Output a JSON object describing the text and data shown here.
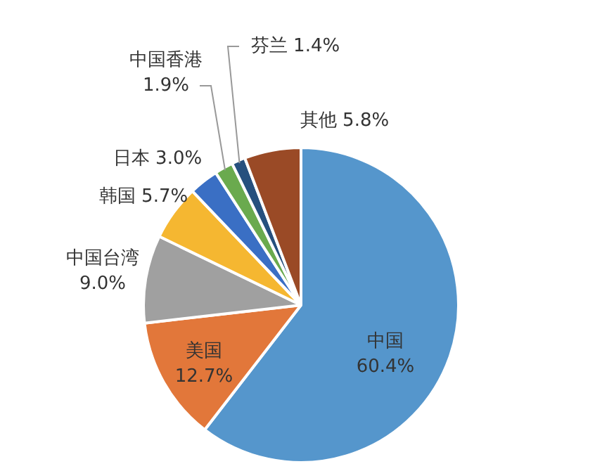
{
  "chart_data": {
    "type": "pie",
    "categories": [
      "中国",
      "美国",
      "中国台湾",
      "韩国",
      "日本",
      "中国香港",
      "芬兰",
      "其他"
    ],
    "values": [
      60.4,
      12.7,
      9.0,
      5.7,
      3.0,
      1.9,
      1.4,
      5.8
    ],
    "value_labels": [
      "60.4%",
      "12.7%",
      "9.0%",
      "5.7%",
      "3.0%",
      "1.9%",
      "1.4%",
      "5.8%"
    ],
    "colors": [
      "#5596cc",
      "#e2773a",
      "#a0a0a0",
      "#f5b731",
      "#3a6fc4",
      "#6aaa4e",
      "#26507e",
      "#9a4a26"
    ],
    "legend": false
  }
}
